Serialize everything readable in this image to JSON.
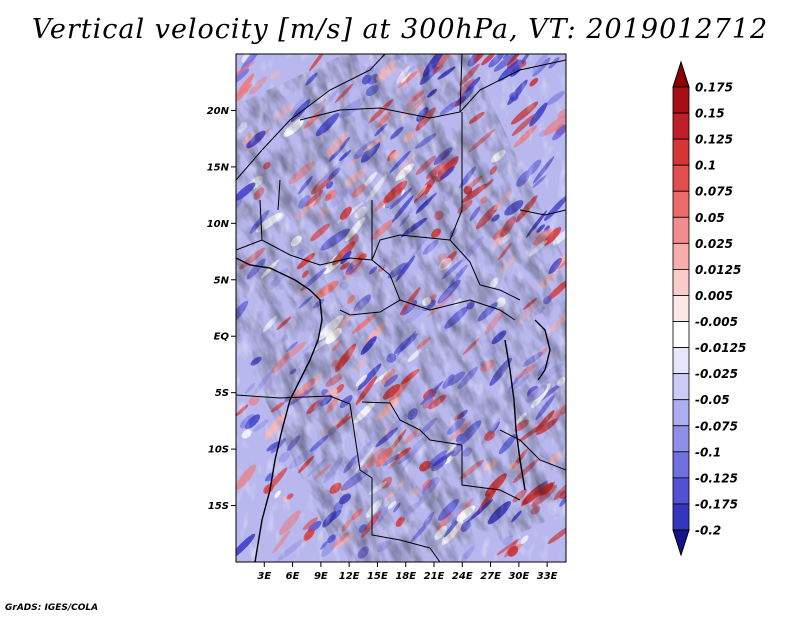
{
  "title": "Vertical velocity [m/s] at 300hPa, VT: 2019012712",
  "footer": "GrADS: IGES/COLA",
  "map": {
    "lon_range": [
      0,
      35
    ],
    "lat_range": [
      -20,
      25
    ],
    "lon_ticks": [
      {
        "value": 3,
        "label": "3E"
      },
      {
        "value": 6,
        "label": "6E"
      },
      {
        "value": 9,
        "label": "9E"
      },
      {
        "value": 12,
        "label": "12E"
      },
      {
        "value": 15,
        "label": "15E"
      },
      {
        "value": 18,
        "label": "18E"
      },
      {
        "value": 21,
        "label": "21E"
      },
      {
        "value": 24,
        "label": "24E"
      },
      {
        "value": 27,
        "label": "27E"
      },
      {
        "value": 30,
        "label": "30E"
      },
      {
        "value": 33,
        "label": "33E"
      }
    ],
    "lat_ticks": [
      {
        "value": 20,
        "label": "20N"
      },
      {
        "value": 15,
        "label": "15N"
      },
      {
        "value": 10,
        "label": "10N"
      },
      {
        "value": 5,
        "label": "5N"
      },
      {
        "value": 0,
        "label": "EQ"
      },
      {
        "value": -5,
        "label": "5S"
      },
      {
        "value": -10,
        "label": "10S"
      },
      {
        "value": -15,
        "label": "15S"
      }
    ]
  },
  "colorbar": {
    "levels": [
      {
        "label": "0.175",
        "color": "#a50f15"
      },
      {
        "label": "0.15",
        "color": "#bf1f26"
      },
      {
        "label": "0.125",
        "color": "#d73535"
      },
      {
        "label": "0.1",
        "color": "#e34d4d"
      },
      {
        "label": "0.075",
        "color": "#ec6c6c"
      },
      {
        "label": "0.05",
        "color": "#f38c8c"
      },
      {
        "label": "0.025",
        "color": "#f8adad"
      },
      {
        "label": "0.0125",
        "color": "#fbcccc"
      },
      {
        "label": "0.005",
        "color": "#fde6e6"
      },
      {
        "label": "-0.005",
        "color": "#ffffff"
      },
      {
        "label": "-0.0125",
        "color": "#e6e6fb"
      },
      {
        "label": "-0.025",
        "color": "#ccccf6"
      },
      {
        "label": "-0.05",
        "color": "#adadf0"
      },
      {
        "label": "-0.075",
        "color": "#8f8fe8"
      },
      {
        "label": "-0.1",
        "color": "#7070df"
      },
      {
        "label": "-0.125",
        "color": "#5252d3"
      },
      {
        "label": "-0.175",
        "color": "#3535bf"
      },
      {
        "label": "-0.2",
        "color": "#1f1fa5"
      }
    ],
    "top_color": "#8b0000",
    "bottom_color": "#13138c"
  }
}
